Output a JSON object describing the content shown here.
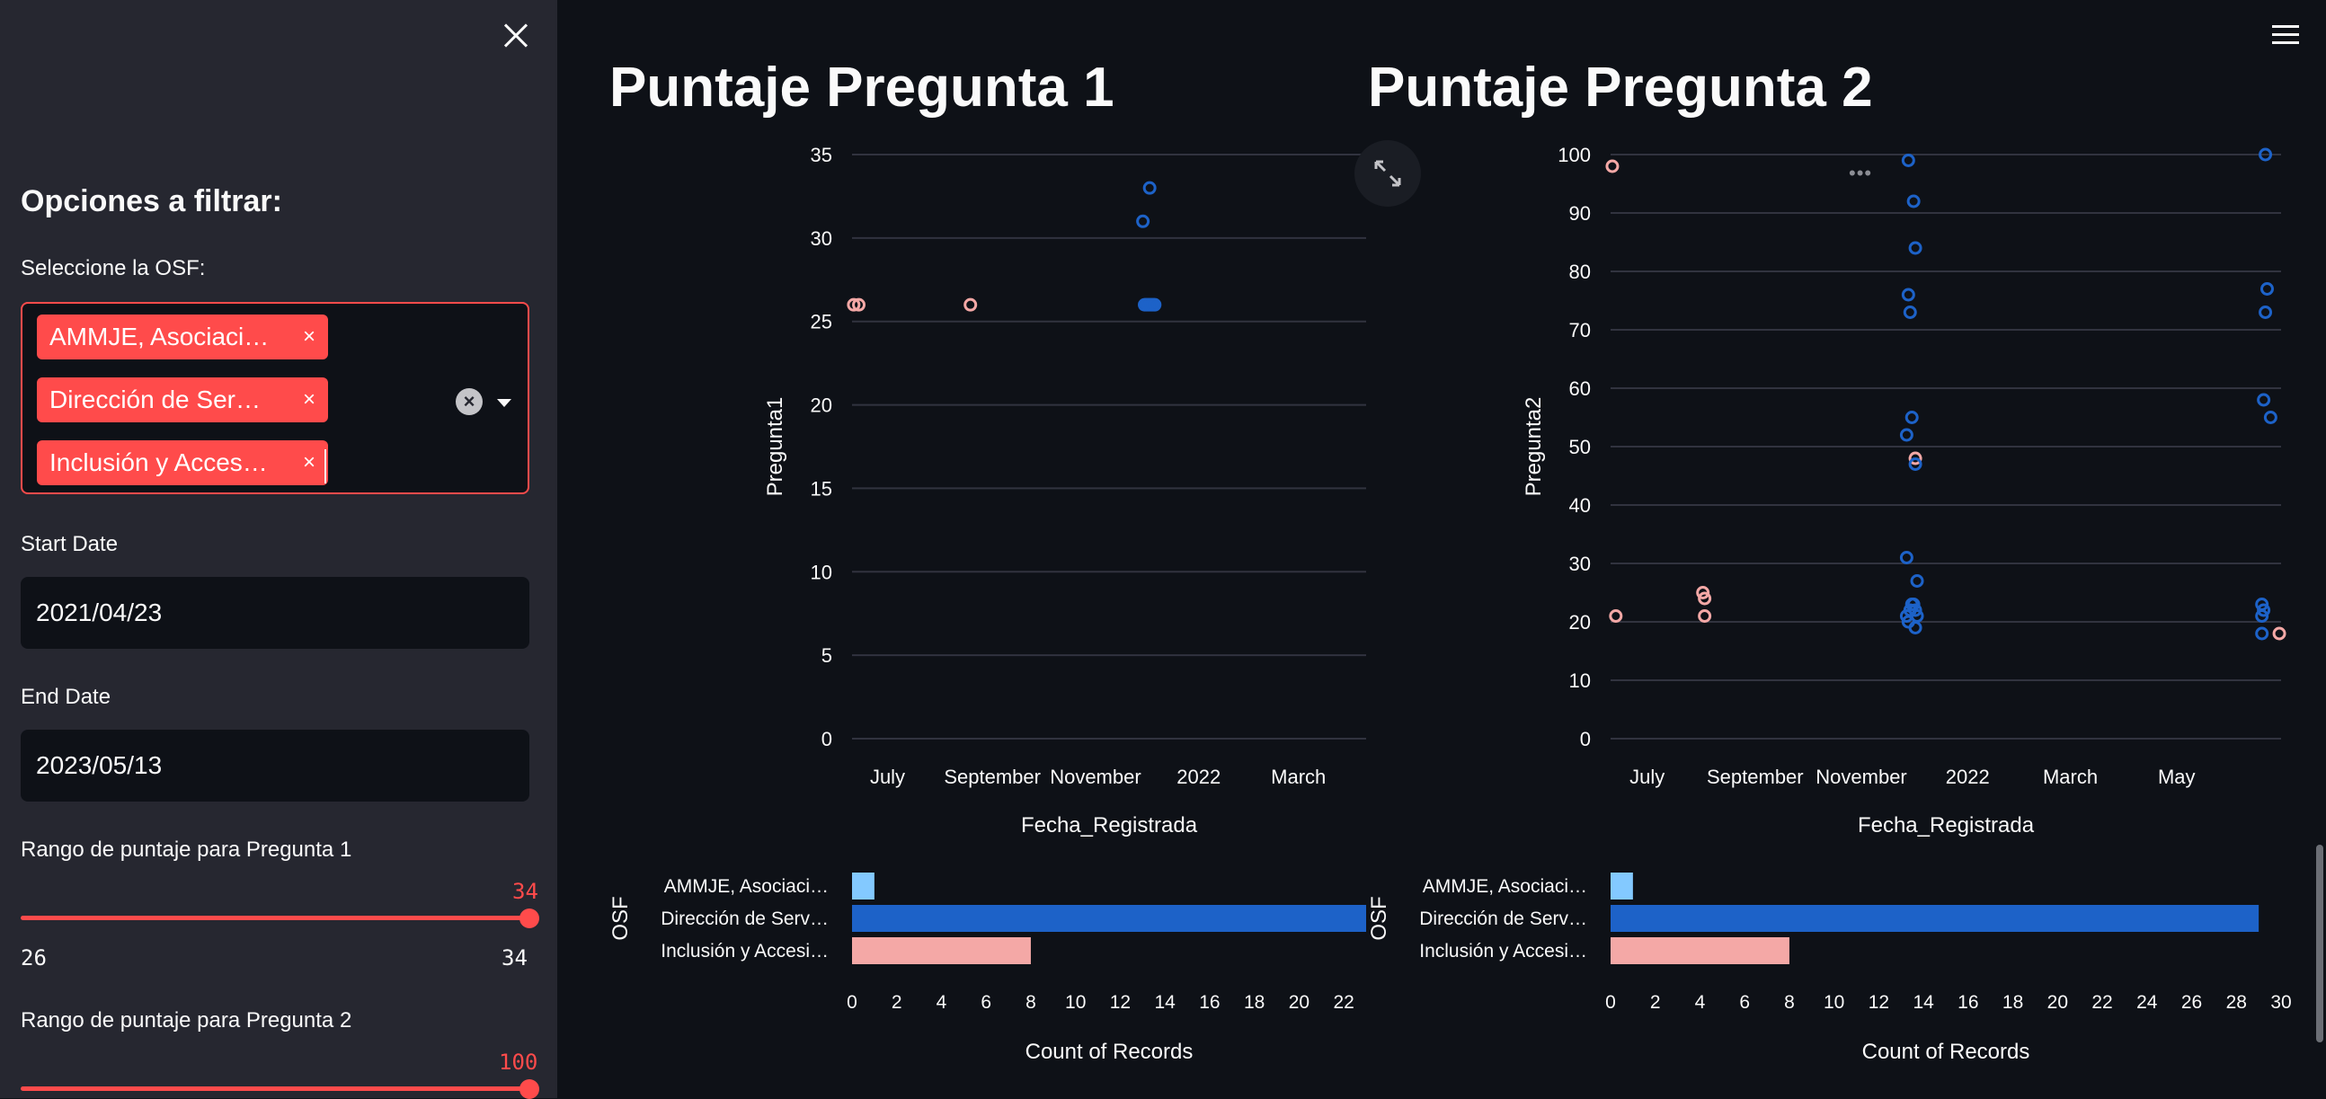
{
  "sidebar": {
    "title": "Opciones a filtrar:",
    "osf_label": "Seleccione la OSF:",
    "selected_tags": [
      "AMMJE, Asociaci…",
      "Dirección de Ser…",
      "Inclusión y Acces…"
    ],
    "tag_remove_glyph": "×",
    "start_label": "Start Date",
    "start_value": "2021/04/23",
    "end_label": "End Date",
    "end_value": "2023/05/13",
    "slider1": {
      "label": "Rango de puntaje para Pregunta 1",
      "current": "34",
      "min": "26",
      "max": "34",
      "fraction": 1.0
    },
    "slider2": {
      "label": "Rango de puntaje para Pregunta 2",
      "current": "100",
      "fraction": 1.0
    }
  },
  "main": {
    "title_1": "Puntaje Pregunta 1",
    "title_2": "Puntaje Pregunta 2",
    "more_glyph": "•••"
  },
  "colors": {
    "accent": "#ff4b4b",
    "series_ammje": "#83c9ff",
    "series_direccion": "#1d62c8",
    "series_inclusion": "#f4a8a6",
    "grid": "#31333f",
    "axis_text": "#fafafa"
  },
  "chart_data": [
    {
      "type": "scatter",
      "title": "",
      "xlabel": "Fecha_Registrada",
      "ylabel": "Pregunta1",
      "ylim": [
        0,
        35
      ],
      "yticks": [
        0,
        5,
        10,
        15,
        20,
        25,
        30,
        35
      ],
      "xlim": [
        "2021-06-10",
        "2022-04-10"
      ],
      "xticks": [
        {
          "date": "2021-07-01",
          "label": "July"
        },
        {
          "date": "2021-09-01",
          "label": "September"
        },
        {
          "date": "2021-11-01",
          "label": "November"
        },
        {
          "date": "2022-01-01",
          "label": "2022"
        },
        {
          "date": "2022-03-01",
          "label": "March"
        }
      ],
      "grid": true,
      "series": [
        {
          "color": "#f4a8a6",
          "points": [
            [
              "2021-06-11",
              26
            ],
            [
              "2021-06-14",
              26
            ],
            [
              "2021-08-19",
              26
            ]
          ]
        },
        {
          "color": "#1d62c8",
          "points": [
            [
              "2021-11-29",
              31
            ],
            [
              "2021-12-03",
              33
            ],
            [
              "2021-11-30",
              26
            ],
            [
              "2021-12-01",
              26
            ],
            [
              "2021-12-02",
              26
            ],
            [
              "2021-12-03",
              26
            ],
            [
              "2021-12-04",
              26
            ],
            [
              "2021-12-05",
              26
            ],
            [
              "2021-12-06",
              26
            ]
          ]
        }
      ]
    },
    {
      "type": "scatter",
      "title": "",
      "xlabel": "Fecha_Registrada",
      "ylabel": "Pregunta2",
      "ylim": [
        0,
        100
      ],
      "yticks": [
        0,
        10,
        20,
        30,
        40,
        50,
        60,
        70,
        80,
        90,
        100
      ],
      "xlim": [
        "2021-06-10",
        "2022-06-30"
      ],
      "xticks": [
        {
          "date": "2021-07-01",
          "label": "July"
        },
        {
          "date": "2021-09-01",
          "label": "September"
        },
        {
          "date": "2021-11-01",
          "label": "November"
        },
        {
          "date": "2022-01-01",
          "label": "2022"
        },
        {
          "date": "2022-03-01",
          "label": "March"
        },
        {
          "date": "2022-05-01",
          "label": "May"
        }
      ],
      "grid": true,
      "series": [
        {
          "color": "#f4a8a6",
          "points": [
            [
              "2021-06-11",
              98
            ],
            [
              "2021-06-13",
              21
            ],
            [
              "2021-08-02",
              25
            ],
            [
              "2021-08-03",
              24
            ],
            [
              "2021-08-03",
              21
            ],
            [
              "2021-12-02",
              48
            ],
            [
              "2022-06-29",
              18
            ]
          ]
        },
        {
          "color": "#1d62c8",
          "points": [
            [
              "2021-11-28",
              99
            ],
            [
              "2021-11-27",
              31
            ],
            [
              "2021-11-27",
              52
            ],
            [
              "2021-11-28",
              76
            ],
            [
              "2021-11-29",
              73
            ],
            [
              "2021-11-30",
              55
            ],
            [
              "2021-12-01",
              92
            ],
            [
              "2021-12-02",
              84
            ],
            [
              "2021-12-02",
              47
            ],
            [
              "2021-12-03",
              27
            ],
            [
              "2021-11-27",
              21
            ],
            [
              "2021-11-28",
              20
            ],
            [
              "2021-11-29",
              22
            ],
            [
              "2021-11-30",
              23
            ],
            [
              "2021-12-01",
              23
            ],
            [
              "2021-12-02",
              22
            ],
            [
              "2021-12-03",
              21
            ],
            [
              "2021-12-02",
              19
            ],
            [
              "2022-06-21",
              100
            ],
            [
              "2022-06-22",
              77
            ],
            [
              "2022-06-21",
              73
            ],
            [
              "2022-06-20",
              58
            ],
            [
              "2022-06-24",
              55
            ],
            [
              "2022-06-19",
              23
            ],
            [
              "2022-06-20",
              22
            ],
            [
              "2022-06-19",
              21
            ],
            [
              "2022-06-19",
              18
            ]
          ]
        }
      ]
    },
    {
      "type": "bar",
      "orientation": "horizontal",
      "title": "",
      "xlabel": "Count of Records",
      "ylabel": "OSF",
      "categories": [
        "AMMJE, Asociaci…",
        "Dirección de Serv…",
        "Inclusión y Accesi…"
      ],
      "values": [
        1,
        23,
        8
      ],
      "colors": [
        "#83c9ff",
        "#1d62c8",
        "#f4a8a6"
      ],
      "xlim": [
        0,
        23
      ],
      "xticks": [
        0,
        2,
        4,
        6,
        8,
        10,
        12,
        14,
        16,
        18,
        20,
        22
      ]
    },
    {
      "type": "bar",
      "orientation": "horizontal",
      "title": "",
      "xlabel": "Count of Records",
      "ylabel": "OSF",
      "categories": [
        "AMMJE, Asociaci…",
        "Dirección de Serv…",
        "Inclusión y Accesi…"
      ],
      "values": [
        1,
        29,
        8
      ],
      "colors": [
        "#83c9ff",
        "#1d62c8",
        "#f4a8a6"
      ],
      "xlim": [
        0,
        30
      ],
      "xticks": [
        0,
        2,
        4,
        6,
        8,
        10,
        12,
        14,
        16,
        18,
        20,
        22,
        24,
        26,
        28,
        30
      ]
    }
  ]
}
